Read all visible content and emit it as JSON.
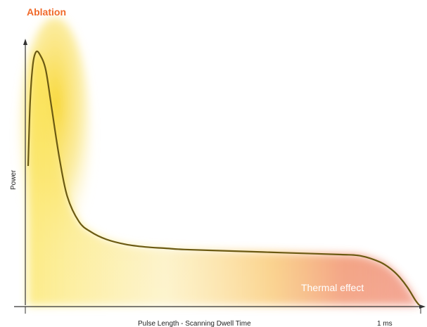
{
  "chart_data": {
    "type": "area",
    "title": "",
    "xlabel": "Pulse Length - Scanning Dwell Time",
    "ylabel": "Power",
    "annotations": {
      "ablation": "Ablation",
      "thermal": "Thermal effect",
      "x_end_label": "1 ms"
    },
    "x_range": [
      0,
      1
    ],
    "y_range": [
      0,
      1
    ],
    "series": [
      {
        "x": [
          0.0,
          0.005,
          0.012,
          0.02,
          0.03,
          0.045,
          0.06,
          0.08,
          0.1,
          0.13,
          0.16,
          0.2,
          0.25,
          0.3,
          0.35,
          0.4,
          0.5,
          0.6,
          0.7,
          0.8,
          0.85,
          0.9,
          0.93,
          0.95,
          0.97,
          0.99,
          1.0
        ],
        "values": [
          0.55,
          0.8,
          0.95,
          1.0,
          0.99,
          0.93,
          0.78,
          0.58,
          0.43,
          0.33,
          0.29,
          0.26,
          0.24,
          0.23,
          0.225,
          0.22,
          0.215,
          0.21,
          0.205,
          0.2,
          0.195,
          0.17,
          0.14,
          0.11,
          0.07,
          0.02,
          0.0
        ]
      }
    ],
    "grid": false,
    "legend": "none",
    "colors": {
      "curve": "#6b5a12",
      "ablation_text": "#f06a2a",
      "yellow": "#f7d21e",
      "orange": "#f28c3c",
      "red": "#e8593a",
      "axis": "#333333"
    }
  }
}
